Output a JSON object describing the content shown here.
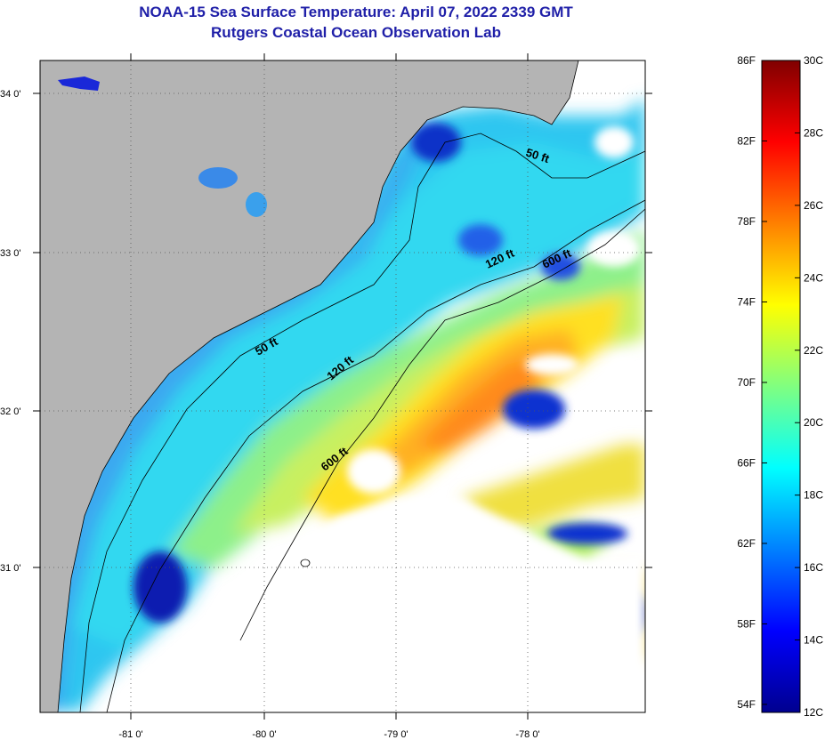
{
  "title": {
    "line1": "NOAA-15 Sea Surface Temperature:  April 07, 2022 2339 GMT",
    "line2": "Rutgers Coastal Ocean Observation Lab"
  },
  "map": {
    "lon_range": [
      -81.7,
      -77.2
    ],
    "lat_range": [
      30.2,
      34.2
    ],
    "lon_ticks": [
      {
        "value": -81,
        "label": "-81 0'"
      },
      {
        "value": -80,
        "label": "-80 0'"
      },
      {
        "value": -79,
        "label": "-79 0'"
      },
      {
        "value": -78,
        "label": "-78 0'"
      }
    ],
    "lat_ticks": [
      {
        "value": 34,
        "label": "34 0'"
      },
      {
        "value": 33,
        "label": "33 0'"
      },
      {
        "value": 32,
        "label": "32 0'"
      },
      {
        "value": 31,
        "label": "31 0'"
      }
    ],
    "land_color": "#b4b4b4",
    "cloud_color": "#ffffff",
    "gridlines": "dotted",
    "contours": [
      {
        "label": "50 ft"
      },
      {
        "label": "50 ft"
      },
      {
        "label": "120 ft"
      },
      {
        "label": "120 ft"
      },
      {
        "label": "600 ft"
      },
      {
        "label": "600 ft"
      }
    ]
  },
  "colorbar": {
    "min_c": 12,
    "max_c": 30,
    "fahrenheit_labels": [
      "86F",
      "82F",
      "78F",
      "74F",
      "70F",
      "66F",
      "62F",
      "58F",
      "54F"
    ],
    "celsius_labels": [
      "30C",
      "28C",
      "26C",
      "24C",
      "22C",
      "20C",
      "18C",
      "16C",
      "14C",
      "12C"
    ],
    "colormap": [
      "#00008f",
      "#0000ff",
      "#0080ff",
      "#00ffff",
      "#80ff80",
      "#ffff00",
      "#ff8000",
      "#ff0000",
      "#800000"
    ]
  }
}
